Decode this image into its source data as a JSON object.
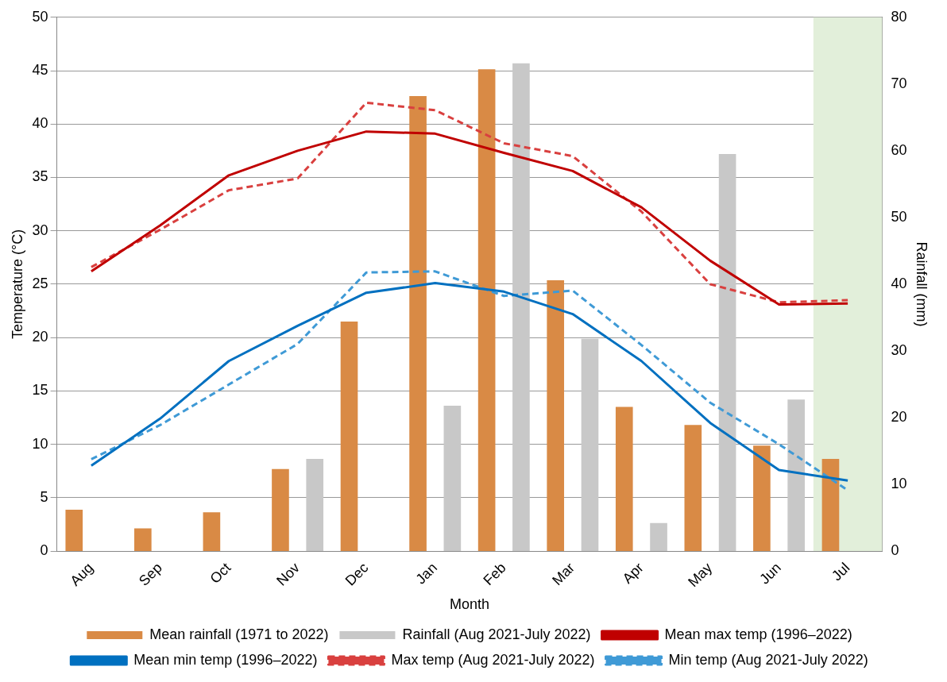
{
  "chart_data": {
    "type": "bar",
    "xlabel": "Month",
    "ylabel": "Temperature (°C)",
    "y2label": "Rainfall (mm)",
    "categories": [
      "Aug",
      "Sep",
      "Oct",
      "Nov",
      "Dec",
      "Jan",
      "Feb",
      "Mar",
      "Apr",
      "May",
      "Jun",
      "Jul"
    ],
    "series": [
      {
        "name": "Mean rainfall (1971 to 2022)",
        "axis": "y2",
        "color": "#d98a45",
        "values": [
          6.2,
          3.4,
          5.8,
          12.3,
          34.4,
          68.2,
          72.2,
          40.6,
          21.6,
          18.9,
          15.8,
          13.8
        ]
      },
      {
        "name": "Rainfall (Aug 2021-July 2022)",
        "axis": "y2",
        "color": "#c8c8c8",
        "values": [
          0,
          0,
          0,
          13.8,
          0,
          21.8,
          73.1,
          31.8,
          4.2,
          59.5,
          22.7,
          null
        ]
      },
      {
        "name": "Mean max temp (1996–2022)",
        "type": "line",
        "color": "#c00000",
        "line_style": "solid",
        "values": [
          26.2,
          30.5,
          35.2,
          37.5,
          39.3,
          39.1,
          37.3,
          35.6,
          32.2,
          27.2,
          23.1,
          23.2
        ]
      },
      {
        "name": "Mean min temp (1996–2022)",
        "type": "line",
        "color": "#0070c0",
        "line_style": "solid",
        "values": [
          8.0,
          12.4,
          17.8,
          21.1,
          24.2,
          25.1,
          24.3,
          22.2,
          17.8,
          12.0,
          7.6,
          6.6
        ]
      },
      {
        "name": "Max temp (Aug 2021-July 2022)",
        "type": "line",
        "color": "#d9403f",
        "line_style": "dashed",
        "values": [
          26.6,
          30.1,
          33.8,
          34.9,
          42.0,
          41.3,
          38.2,
          37.0,
          31.8,
          25.0,
          23.3,
          23.5
        ]
      },
      {
        "name": "Min temp (Aug 2021-July 2022)",
        "type": "line",
        "color": "#3f9ad6",
        "line_style": "dashed",
        "values": [
          8.6,
          11.8,
          15.6,
          19.4,
          26.1,
          26.2,
          23.9,
          24.4,
          19.3,
          13.9,
          10.0,
          5.7
        ]
      }
    ],
    "ylim": [
      0,
      50
    ],
    "yticks": [
      0,
      5,
      10,
      15,
      20,
      25,
      30,
      35,
      40,
      45,
      50
    ],
    "y2lim": [
      0,
      80
    ],
    "y2ticks": [
      0,
      10,
      20,
      30,
      40,
      50,
      60,
      70,
      80
    ],
    "bands": [
      {
        "axis": "x",
        "from": "Jul",
        "to": "Jul",
        "color": "#e2efda"
      }
    ],
    "grid": "y",
    "legend": "bottom",
    "marker": "none"
  }
}
